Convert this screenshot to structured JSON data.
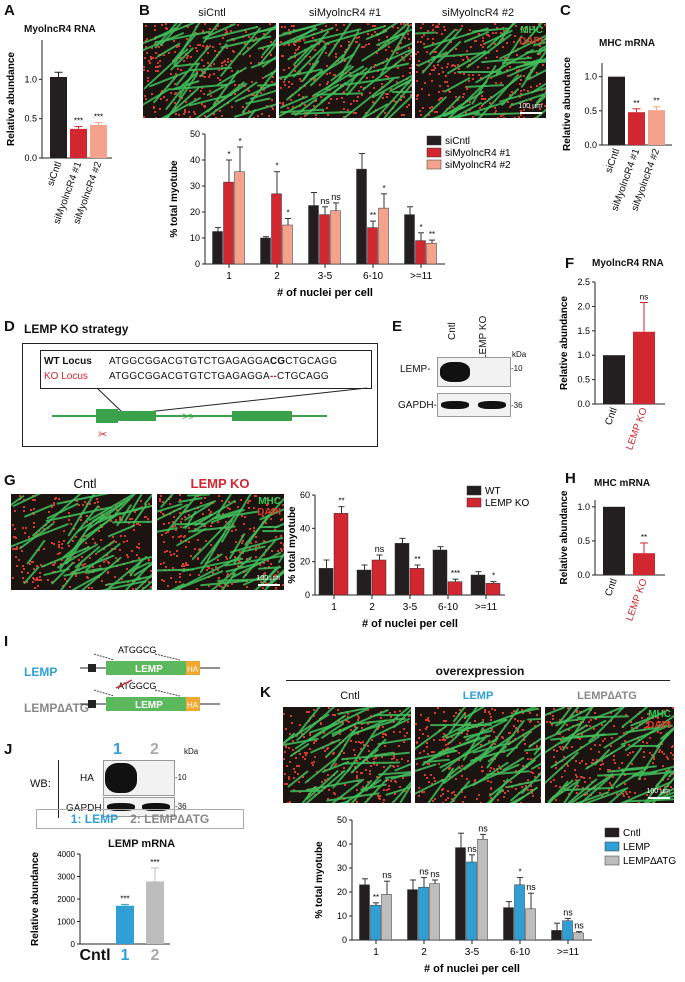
{
  "panels": {
    "A": "A",
    "B": "B",
    "C": "C",
    "D": "D",
    "E": "E",
    "F": "F",
    "G": "G",
    "H": "H",
    "I": "I",
    "J": "J",
    "K": "K"
  },
  "panelA": {
    "title": "MyolncR4 RNA",
    "ylabel": "Relative abundance"
  },
  "panelB": {
    "images": [
      "siCntl",
      "siMyolncR4 #1",
      "siMyolncR4 #2"
    ],
    "mhc": "MHC",
    "dapi": "DAPI",
    "scale": "100 µm",
    "ylabel": "% total myotube",
    "xlabel": "# of nuclei per cell"
  },
  "panelC": {
    "title": "MHC mRNA",
    "ylabel": "Relative abundance"
  },
  "panelD": {
    "title": "LEMP KO strategy",
    "wt_label": "WT Locus",
    "wt_seq_a": "ATGGCGGACGTGTCTGAGAGGA",
    "wt_seq_b": "CG",
    "wt_seq_c": "CTGCAGG",
    "ko_label": "KO Locus",
    "ko_seq_a": "ATGGCGGACGTGTCTGAGAGGA",
    "ko_seq_b": "--",
    "ko_seq_c": "CTGCAGG",
    "arrows": ">>"
  },
  "panelE": {
    "lanes": [
      "Cntl",
      "LEMP KO"
    ],
    "kda": "kDa",
    "rows": [
      "LEMP-",
      "GAPDH-"
    ],
    "markers": [
      "-10",
      "-36"
    ]
  },
  "panelF": {
    "title": "MyolncR4 RNA",
    "ylabel": "Relative abundance"
  },
  "panelG": {
    "images": [
      "Cntl",
      "LEMP KO"
    ],
    "mhc": "MHC",
    "dapi": "DAPI",
    "scale": "100 µm",
    "ylabel": "% total myotube",
    "xlabel": "# of nuclei per cell"
  },
  "panelH": {
    "title": "MHC mRNA",
    "ylabel": "Relative abundance"
  },
  "panelI": {
    "construct1": "LEMP",
    "construct2": "LEMP∆ATG",
    "seq": "ATGGCG",
    "box": "LEMP",
    "tag": "HA"
  },
  "panelJ": {
    "lanes": [
      "1",
      "2"
    ],
    "kda": "kDa",
    "wb": "WB:",
    "rows": [
      "HA",
      "GAPDH"
    ],
    "markers": [
      "-10",
      "-36"
    ],
    "legend_1": "1: LEMP",
    "legend_2": "2: LEMP∆ATG",
    "title": "LEMP mRNA",
    "ylabel": "Relative abundance"
  },
  "panelK": {
    "header": "overexpression",
    "images": [
      "Cntl",
      "LEMP",
      "LEMP∆ATG"
    ],
    "mhc": "MHC",
    "dapi": "DAPI",
    "scale": "100 µm",
    "ylabel": "% total myotube",
    "xlabel": "# of nuclei per cell"
  },
  "colors": {
    "black": "#231f20",
    "red": "#d22630",
    "pink": "#f4a28c",
    "blue": "#2f9fd6",
    "grey": "#bdbdbd",
    "mhc_green": "#2ecc55",
    "dapi_red": "#e03a2c",
    "lemp_box": "#5cb85c",
    "ha_box": "#f0a830"
  },
  "chart_data": [
    {
      "id": "A",
      "type": "bar",
      "categories": [
        "siCntl",
        "siMyolncR4 #1",
        "siMyolncR4 #2"
      ],
      "values": [
        1.03,
        0.37,
        0.42
      ],
      "errors": [
        0.06,
        0.03,
        0.03
      ],
      "sig": [
        "",
        "***",
        "***"
      ],
      "colors": [
        "#231f20",
        "#d22630",
        "#f4a28c"
      ],
      "ylim": [
        0,
        1.5
      ],
      "yticks": [
        "0.0",
        "0.5",
        "1.0"
      ],
      "ylabel": "Relative abundance",
      "title": "MyolncR4 RNA"
    },
    {
      "id": "B",
      "type": "bar",
      "categories": [
        "1",
        "2",
        "3-5",
        "6-10",
        ">=11"
      ],
      "series": [
        {
          "name": "siCntl",
          "values": [
            12.5,
            10,
            22.5,
            36.5,
            19
          ],
          "errors": [
            1.5,
            0.5,
            5,
            6,
            3
          ],
          "sig": [
            "",
            "",
            "",
            "",
            ""
          ]
        },
        {
          "name": "siMyolncR4 #1",
          "values": [
            31.5,
            27,
            19,
            14,
            9
          ],
          "errors": [
            8.5,
            8.5,
            3,
            2.5,
            3
          ],
          "sig": [
            "*",
            "*",
            "ns",
            "**",
            "*"
          ]
        },
        {
          "name": "siMyolncR4 #2",
          "values": [
            35.5,
            15,
            20.5,
            21.5,
            8
          ],
          "errors": [
            9.5,
            2.5,
            3,
            5.5,
            1.2
          ],
          "sig": [
            "*",
            "*",
            "ns",
            "*",
            "**"
          ]
        }
      ],
      "colors": [
        "#231f20",
        "#d22630",
        "#f4a28c"
      ],
      "ylim": [
        0,
        50
      ],
      "yticks": [
        "0",
        "10",
        "20",
        "30",
        "40",
        "50"
      ],
      "ylabel": "% total myotube",
      "xlabel": "# of nuclei per cell"
    },
    {
      "id": "C",
      "type": "bar",
      "categories": [
        "siCntl",
        "siMyolncR4 #1",
        "siMyolncR4 #2"
      ],
      "values": [
        1.0,
        0.48,
        0.51
      ],
      "errors": [
        0,
        0.05,
        0.05
      ],
      "sig": [
        "",
        "**",
        "**"
      ],
      "colors": [
        "#231f20",
        "#d22630",
        "#f4a28c"
      ],
      "ylim": [
        0,
        1.2
      ],
      "yticks": [
        "0.0",
        "0.5",
        "1.0"
      ],
      "ylabel": "Relative abundance",
      "title": "MHC mRNA"
    },
    {
      "id": "F",
      "type": "bar",
      "categories": [
        "Cntl",
        "LEMP KO"
      ],
      "values": [
        1.0,
        1.48
      ],
      "errors": [
        0,
        0.6
      ],
      "sig": [
        "",
        "ns"
      ],
      "colors": [
        "#231f20",
        "#d22630"
      ],
      "ylim": [
        0,
        2.5
      ],
      "yticks": [
        "0.0",
        "0.5",
        "1.0",
        "1.5",
        "2.0",
        "2.5"
      ],
      "ylabel": "Relative abundance",
      "title": "MyolncR4 RNA"
    },
    {
      "id": "G",
      "type": "bar",
      "categories": [
        "1",
        "2",
        "3-5",
        "6-10",
        ">=11"
      ],
      "series": [
        {
          "name": "WT",
          "values": [
            16,
            15,
            31,
            27,
            12
          ],
          "errors": [
            5,
            3,
            3,
            2,
            2
          ],
          "sig": [
            "",
            "",
            "",
            "",
            ""
          ]
        },
        {
          "name": "LEMP KO",
          "values": [
            49,
            21,
            16,
            8,
            7
          ],
          "errors": [
            4,
            3,
            2,
            1.5,
            1
          ],
          "sig": [
            "**",
            "ns",
            "**",
            "***",
            "*"
          ]
        }
      ],
      "colors": [
        "#231f20",
        "#d22630"
      ],
      "ylim": [
        0,
        60
      ],
      "yticks": [
        "0",
        "20",
        "40",
        "60"
      ],
      "ylabel": "% total myotube",
      "xlabel": "# of nuclei per cell"
    },
    {
      "id": "H",
      "type": "bar",
      "categories": [
        "Cntl",
        "LEMP KO"
      ],
      "values": [
        1.0,
        0.32
      ],
      "errors": [
        0,
        0.15
      ],
      "sig": [
        "",
        "**"
      ],
      "colors": [
        "#231f20",
        "#d22630"
      ],
      "ylim": [
        0,
        1.1
      ],
      "yticks": [
        "0.0",
        "0.5",
        "1.0"
      ],
      "ylabel": "Relative abundance",
      "title": "MHC mRNA"
    },
    {
      "id": "J",
      "type": "bar",
      "categories": [
        "Cntl",
        "1",
        "2"
      ],
      "values": [
        0,
        1700,
        2780
      ],
      "errors": [
        0,
        60,
        600
      ],
      "sig": [
        "",
        "***",
        "***"
      ],
      "colors": [
        "#231f20",
        "#2f9fd6",
        "#bdbdbd"
      ],
      "ylim": [
        0,
        4000
      ],
      "yticks": [
        "0",
        "1000",
        "2000",
        "3000",
        "4000"
      ],
      "ylabel": "Relative abundance",
      "title": "LEMP mRNA"
    },
    {
      "id": "K",
      "type": "bar",
      "categories": [
        "1",
        "2",
        "3-5",
        "6-10",
        ">=11"
      ],
      "series": [
        {
          "name": "Cntl",
          "values": [
            23,
            21,
            38.5,
            13.5,
            4
          ],
          "errors": [
            2.5,
            4,
            6,
            2.5,
            3
          ],
          "sig": [
            "",
            "",
            "",
            "",
            ""
          ]
        },
        {
          "name": "LEMP",
          "values": [
            14.5,
            22,
            32.5,
            23,
            8
          ],
          "errors": [
            1,
            4,
            3,
            3,
            1
          ],
          "sig": [
            "**",
            "ns",
            "ns",
            "*",
            "ns"
          ]
        },
        {
          "name": "LEMP∆ATG",
          "values": [
            19,
            23.5,
            42,
            13,
            3
          ],
          "errors": [
            5.5,
            1.5,
            2,
            6.5,
            0.5
          ],
          "sig": [
            "ns",
            "ns",
            "ns",
            "ns",
            "ns"
          ]
        }
      ],
      "colors": [
        "#231f20",
        "#2f9fd6",
        "#bdbdbd"
      ],
      "ylim": [
        0,
        50
      ],
      "yticks": [
        "0",
        "10",
        "20",
        "30",
        "40",
        "50"
      ],
      "ylabel": "% total myotube",
      "xlabel": "# of nuclei per cell"
    }
  ]
}
